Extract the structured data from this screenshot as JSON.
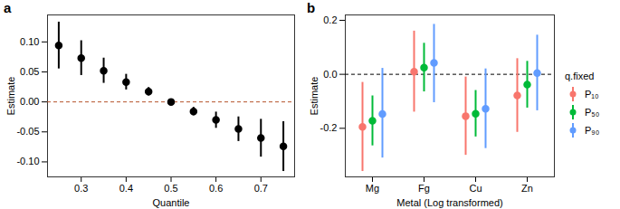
{
  "chart_data": [
    {
      "type": "scatter",
      "panel_label": "a",
      "x_label": "Quantile",
      "y_label": "Estimate",
      "x": [
        0.25,
        0.3,
        0.35,
        0.4,
        0.45,
        0.5,
        0.55,
        0.6,
        0.65,
        0.7,
        0.75
      ],
      "values": [
        0.094,
        0.073,
        0.052,
        0.033,
        0.017,
        0.0,
        -0.016,
        -0.03,
        -0.045,
        -0.06,
        -0.074
      ],
      "error_low": [
        0.055,
        0.044,
        0.031,
        0.02,
        0.01,
        0.0,
        -0.023,
        -0.044,
        -0.066,
        -0.092,
        -0.116
      ],
      "error_high": [
        0.133,
        0.102,
        0.073,
        0.046,
        0.024,
        0.0,
        -0.009,
        -0.017,
        -0.025,
        -0.029,
        -0.033
      ],
      "color": "#000000",
      "xlim": [
        0.225,
        0.775
      ],
      "xticks": [
        0.3,
        0.4,
        0.5,
        0.6,
        0.7
      ],
      "ylim": [
        -0.125,
        0.145
      ],
      "yticks": [
        {
          "value": -0.1,
          "label": "-0.10"
        },
        {
          "value": -0.05,
          "label": "-0.05"
        },
        {
          "value": 0,
          "label": "0.00"
        },
        {
          "value": 0.05,
          "label": "0.05"
        },
        {
          "value": 0.1,
          "label": "0.10"
        }
      ],
      "reference_line": 0
    },
    {
      "type": "scatter",
      "panel_label": "b",
      "x_label": "Metal (Log transformed)",
      "y_label": "Estimate",
      "categories": [
        "Mg",
        "Fg",
        "Cu",
        "Zn"
      ],
      "legend_title": "q.fixed",
      "legend": "right",
      "series": [
        {
          "name": "P₁₀",
          "color": "#F8766D",
          "values": [
            -0.195,
            0.01,
            -0.155,
            -0.078
          ],
          "error_low": [
            -0.36,
            -0.14,
            -0.3,
            -0.215
          ],
          "error_high": [
            -0.03,
            0.16,
            -0.01,
            0.058
          ]
        },
        {
          "name": "P₅₀",
          "color": "#00BA38",
          "values": [
            -0.172,
            0.025,
            -0.146,
            -0.038
          ],
          "error_low": [
            -0.265,
            -0.065,
            -0.232,
            -0.125
          ],
          "error_high": [
            -0.08,
            0.115,
            -0.06,
            0.048
          ]
        },
        {
          "name": "P₉₀",
          "color": "#619CFF",
          "values": [
            -0.147,
            0.042,
            -0.128,
            0.005
          ],
          "error_low": [
            -0.31,
            -0.105,
            -0.275,
            -0.135
          ],
          "error_high": [
            0.022,
            0.185,
            0.02,
            0.145
          ]
        }
      ],
      "ylim": [
        -0.38,
        0.22
      ],
      "yticks": [
        {
          "value": -0.2,
          "label": "-0.2"
        },
        {
          "value": 0,
          "label": "0.0"
        },
        {
          "value": 0.2,
          "label": "0.2"
        }
      ],
      "reference_line": 0
    }
  ]
}
